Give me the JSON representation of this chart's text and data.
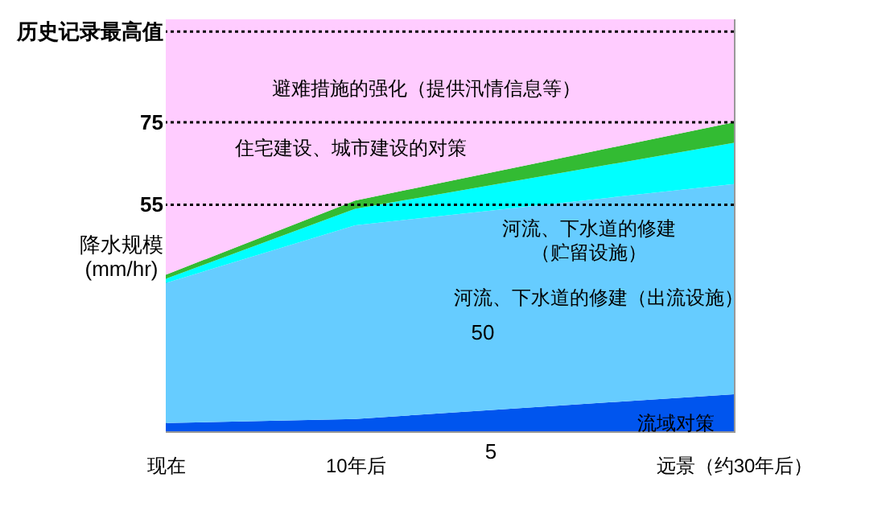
{
  "chart_data": {
    "type": "area",
    "stacked": true,
    "ylabel": "降水规模\n(mm/hr)",
    "categories": [
      "现在",
      "10年后",
      null,
      "远景（约30年后）"
    ],
    "series": [
      {
        "name": "流域对策",
        "color": "#0055ee",
        "values": [
          2,
          3,
          6,
          9
        ]
      },
      {
        "name": "河流、下水道的修建（出流设施）",
        "color": "#66ccff",
        "values": [
          34,
          47,
          49,
          51
        ]
      },
      {
        "name": "河流、下水道的修建（贮留设施）",
        "color": "#00ffff",
        "values": [
          1,
          4,
          7,
          10
        ]
      },
      {
        "name": "住宅建设、城市建设的对策",
        "color": "#33bb33",
        "values": [
          1,
          2,
          3.5,
          5
        ]
      },
      {
        "name": "避难措施的强化（提供汛情信息等）",
        "color": "#ffccff",
        "values": [
          62,
          44,
          34.5,
          25
        ]
      }
    ],
    "ylim": [
      0,
      100
    ],
    "yticks": [
      55,
      75,
      {
        "value": 97,
        "label": "历史记录最高值"
      }
    ],
    "grid": false,
    "ref_lines": [
      {
        "axis": "y",
        "value": 55,
        "line_style": "dotted"
      },
      {
        "axis": "y",
        "value": 75,
        "line_style": "dotted"
      },
      {
        "axis": "y",
        "value": 97,
        "line_style": "dotted"
      }
    ],
    "annotations": [
      "50",
      "5"
    ]
  }
}
